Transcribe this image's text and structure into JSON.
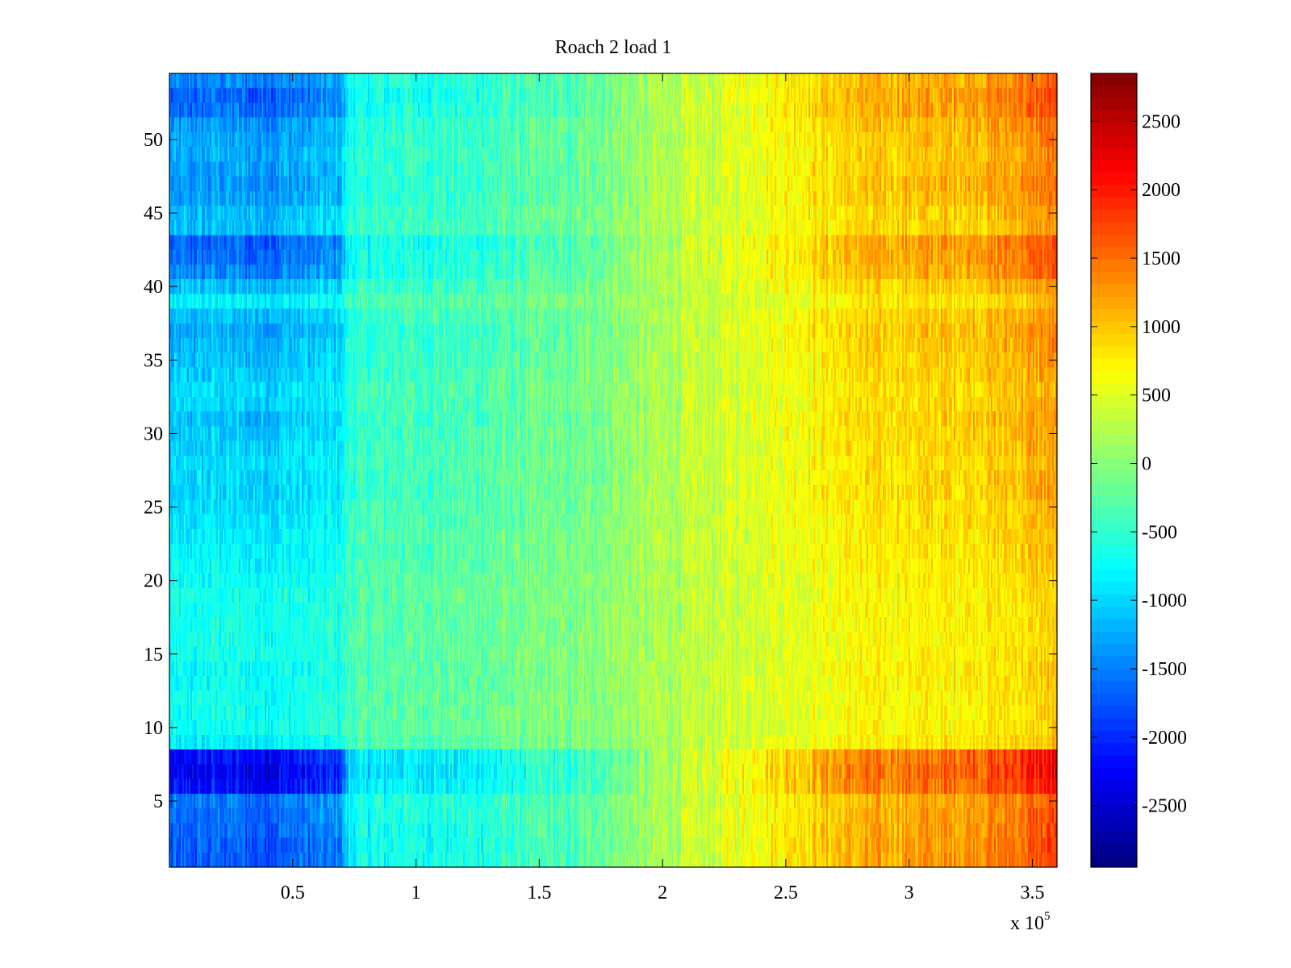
{
  "chart_data": {
    "type": "heatmap",
    "title": "Roach 2 load 1",
    "xlabel": "",
    "ylabel": "",
    "x_exponent_label": {
      "base": "x 10",
      "exponent": "5"
    },
    "xlim": [
      0,
      360000
    ],
    "ylim": [
      0.5,
      54.5
    ],
    "x_ticks": [
      {
        "value": 50000,
        "label": "0.5"
      },
      {
        "value": 100000,
        "label": "1"
      },
      {
        "value": 150000,
        "label": "1.5"
      },
      {
        "value": 200000,
        "label": "2"
      },
      {
        "value": 250000,
        "label": "2.5"
      },
      {
        "value": 300000,
        "label": "3"
      },
      {
        "value": 350000,
        "label": "3.5"
      }
    ],
    "y_ticks": [
      {
        "value": 5,
        "label": "5"
      },
      {
        "value": 10,
        "label": "10"
      },
      {
        "value": 15,
        "label": "15"
      },
      {
        "value": 20,
        "label": "20"
      },
      {
        "value": 25,
        "label": "25"
      },
      {
        "value": 30,
        "label": "30"
      },
      {
        "value": 35,
        "label": "35"
      },
      {
        "value": 40,
        "label": "40"
      },
      {
        "value": 45,
        "label": "45"
      },
      {
        "value": 50,
        "label": "50"
      }
    ],
    "rows": 54,
    "colormap": "jet",
    "colorbar": {
      "clim": [
        -2950,
        2850
      ],
      "ticks": [
        {
          "value": 2500,
          "label": "2500"
        },
        {
          "value": 2000,
          "label": "2000"
        },
        {
          "value": 1500,
          "label": "1500"
        },
        {
          "value": 1000,
          "label": "1000"
        },
        {
          "value": 500,
          "label": "500"
        },
        {
          "value": 0,
          "label": "0"
        },
        {
          "value": -500,
          "label": "-500"
        },
        {
          "value": -1000,
          "label": "-1000"
        },
        {
          "value": -1500,
          "label": "-1500"
        },
        {
          "value": -2000,
          "label": "-2000"
        },
        {
          "value": -2500,
          "label": "-2500"
        }
      ]
    },
    "column_profile": {
      "x": [
        0,
        20000,
        35000,
        50000,
        60000,
        70000,
        73000,
        90000,
        110000,
        130000,
        150000,
        165000,
        172000,
        180000,
        200000,
        220000,
        240000,
        260000,
        280000,
        300000,
        320000,
        340000,
        360000
      ],
      "base": [
        -1350,
        -1250,
        -1300,
        -1250,
        -1200,
        -1150,
        -850,
        -700,
        -600,
        -500,
        -350,
        -300,
        -200,
        -50,
        200,
        400,
        650,
        800,
        950,
        1000,
        1050,
        1150,
        1350
      ],
      "amplitude": [
        1.0,
        1.0,
        1.05,
        1.0,
        1.0,
        0.95,
        0.6,
        0.6,
        0.75,
        0.8,
        0.75,
        0.85,
        0.65,
        0.8,
        0.85,
        0.7,
        0.85,
        0.95,
        1.0,
        1.0,
        1.0,
        1.05,
        1.15
      ]
    },
    "row_weights": [
      1.1,
      1.1,
      1.05,
      1.0,
      0.95,
      1.5,
      1.6,
      1.5,
      0.35,
      0.2,
      0.2,
      0.2,
      0.25,
      0.25,
      0.2,
      0.2,
      0.2,
      0.2,
      0.2,
      0.25,
      0.3,
      0.35,
      0.35,
      0.4,
      0.45,
      0.5,
      0.5,
      0.45,
      0.5,
      0.55,
      0.6,
      0.5,
      0.45,
      0.55,
      0.6,
      0.65,
      0.7,
      0.6,
      0.35,
      0.6,
      0.9,
      1.0,
      1.05,
      0.6,
      0.6,
      0.75,
      0.8,
      0.75,
      0.7,
      0.75,
      0.8,
      1.0,
      1.05,
      0.9
    ]
  }
}
